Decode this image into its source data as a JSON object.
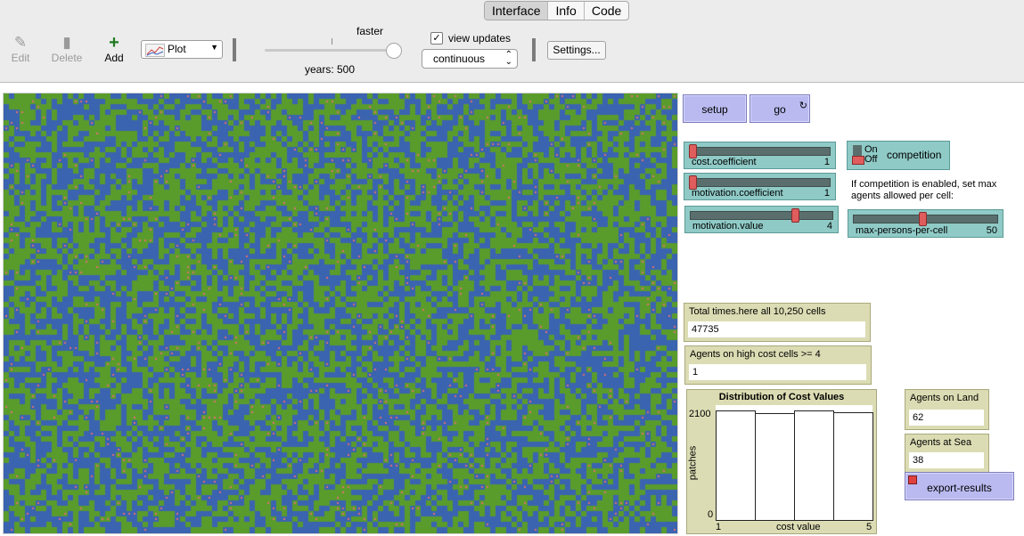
{
  "tabs": [
    "Interface",
    "Info",
    "Code"
  ],
  "toolbar": {
    "edit_label": "Edit",
    "delete_label": "Delete",
    "add_label": "Add",
    "plot_select": "Plot",
    "faster_label": "faster",
    "years_label": "years: 500",
    "view_updates_label": "view updates",
    "view_updates_checked": true,
    "update_mode": "continuous",
    "settings_label": "Settings...",
    "speed_level": 0.95
  },
  "world": {
    "land_color": "#5a9c2c",
    "sea_color": "#3a63b0",
    "agent_color": "#e07070"
  },
  "buttons": {
    "setup": "setup",
    "go": "go",
    "export": "export-results"
  },
  "sliders": {
    "cost_coefficient": {
      "label": "cost.coefficient",
      "value": "1",
      "level": 0.0
    },
    "motivation_coefficient": {
      "label": "motivation.coefficient",
      "value": "1",
      "level": 0.0
    },
    "motivation_value": {
      "label": "motivation.value",
      "value": "4",
      "level": 0.75
    },
    "max_persons": {
      "label": "max-persons-per-cell",
      "value": "50",
      "level": 0.48
    }
  },
  "competition": {
    "on_label": "On",
    "off_label": "Off",
    "label": "competition",
    "note": "If competition is enabled, set max agents allowed per cell:"
  },
  "monitors": {
    "total_times": {
      "label": "Total times.here all 10,250 cells",
      "value": "47735"
    },
    "high_cost": {
      "label": "Agents on high cost cells >= 4",
      "value": "1"
    },
    "agents_land": {
      "label": "Agents on Land",
      "value": "62"
    },
    "agents_sea": {
      "label": "Agents at Sea",
      "value": "38"
    }
  },
  "chart_data": {
    "type": "bar",
    "title": "Distribution of Cost Values",
    "xlabel": "cost value",
    "ylabel": "patches",
    "x_range": [
      1,
      5
    ],
    "ylim": [
      0,
      2100
    ],
    "x_ticks": [
      "1",
      "5"
    ],
    "y_ticks": [
      "0",
      "2100"
    ],
    "categories": [
      "1",
      "2",
      "3",
      "4"
    ],
    "values": [
      2110,
      2060,
      2120,
      2080
    ]
  }
}
